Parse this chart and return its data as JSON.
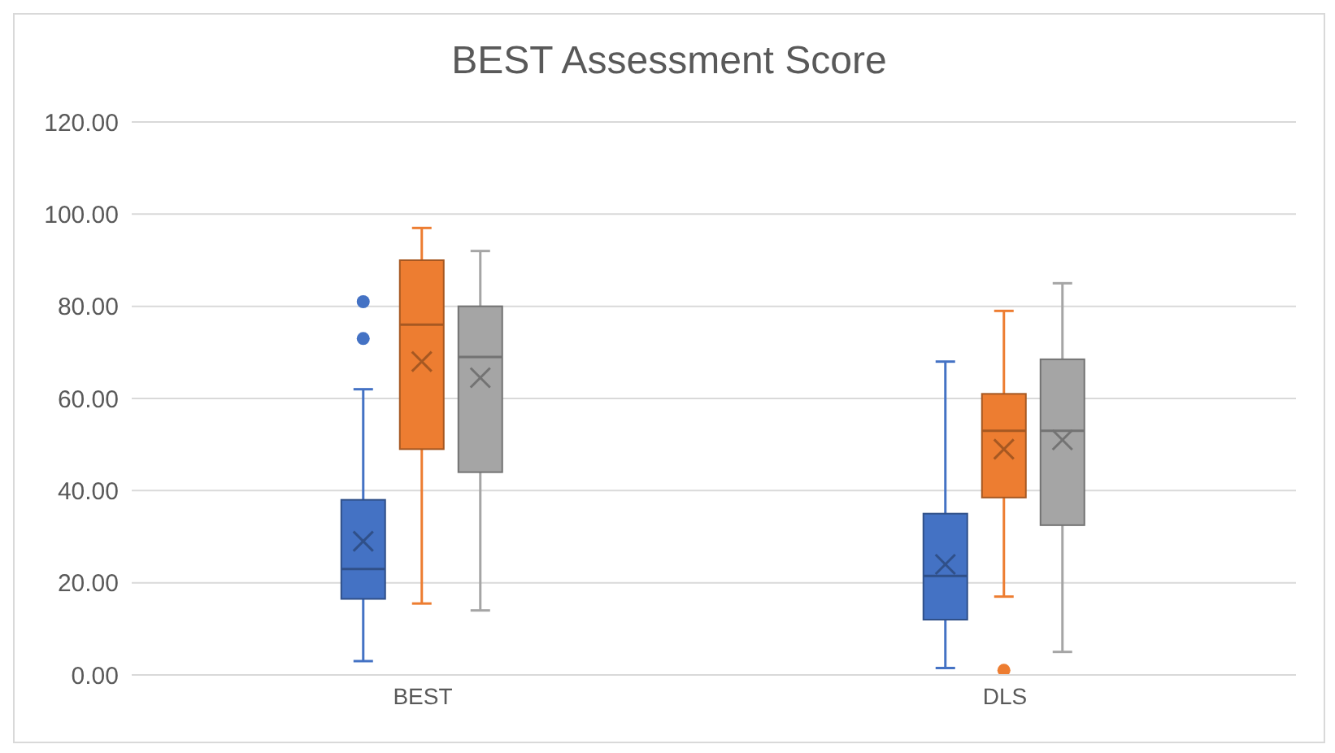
{
  "chart_data": {
    "type": "box",
    "title": "BEST Assessment  Score",
    "categories": [
      "BEST",
      "DLS"
    ],
    "series": [
      {
        "color": "#4472c4",
        "boxes": [
          {
            "low": 3,
            "q1": 16.5,
            "median": 23,
            "q3": 38,
            "high": 62,
            "mean": 29,
            "outliers": [
              81,
              73
            ]
          },
          {
            "low": 1.5,
            "q1": 12,
            "median": 21.5,
            "q3": 35,
            "high": 68,
            "mean": 24
          }
        ]
      },
      {
        "color": "#ed7d31",
        "boxes": [
          {
            "low": 15.5,
            "q1": 49,
            "median": 76,
            "q3": 90,
            "high": 97,
            "mean": 68
          },
          {
            "low": 17,
            "q1": 38.5,
            "median": 53,
            "q3": 61,
            "high": 79,
            "mean": 49,
            "outliers": [
              1
            ]
          }
        ]
      },
      {
        "color": "#a5a5a5",
        "boxes": [
          {
            "low": 14,
            "q1": 44,
            "median": 69,
            "q3": 80,
            "high": 92,
            "mean": 64.5
          },
          {
            "low": 5,
            "q1": 32.5,
            "median": 53,
            "q3": 68.5,
            "high": 85,
            "mean": 51
          }
        ]
      }
    ],
    "ylim": [
      0,
      120
    ],
    "yticks": [
      {
        "value": 0,
        "label": "0.00"
      },
      {
        "value": 20,
        "label": "20.00"
      },
      {
        "value": 40,
        "label": "40.00"
      },
      {
        "value": 60,
        "label": "60.00"
      },
      {
        "value": 80,
        "label": "80.00"
      },
      {
        "value": 100,
        "label": "100.00"
      },
      {
        "value": 120,
        "label": "120.00"
      }
    ],
    "grid": "y"
  }
}
